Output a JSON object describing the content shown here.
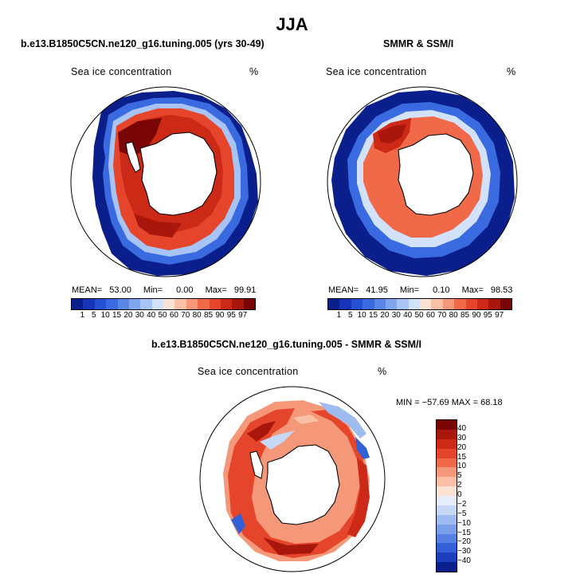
{
  "title": "JJA",
  "panels": [
    {
      "title": "b.e13.B1850C5CN.ne120_g16.tuning.005 (yrs 30-49)",
      "variable": "Sea ice concentration",
      "units": "%",
      "stats": {
        "mean_label": "MEAN=",
        "mean": "53.00",
        "min_label": "Min=",
        "min": "0.00",
        "max_label": "Max=",
        "max": "99.91"
      }
    },
    {
      "title": "SMMR & SSM/I",
      "variable": "Sea ice concentration",
      "units": "%",
      "stats": {
        "mean_label": "MEAN=",
        "mean": "41.95",
        "min_label": "Min=",
        "min": "0.10",
        "max_label": "Max=",
        "max": "98.53"
      }
    },
    {
      "title": "b.e13.B1850C5CN.ne120_g16.tuning.005 - SMMR & SSM/I",
      "variable": "Sea ice concentration",
      "units": "%",
      "stats_text": "MIN = −57.69  MAX =  68.18"
    }
  ],
  "abs_colorbar": {
    "labels": [
      "1",
      "5",
      "10",
      "15",
      "20",
      "30",
      "40",
      "50",
      "60",
      "70",
      "80",
      "85",
      "90",
      "95",
      "97"
    ],
    "colors": [
      "#0a1f8c",
      "#1634b8",
      "#2450d4",
      "#3a6ae0",
      "#5a87e6",
      "#7fa5ee",
      "#a7c4f5",
      "#d3e2fb",
      "#fce2d3",
      "#f9c0a6",
      "#f5987a",
      "#f06a49",
      "#e5462b",
      "#cc2a17",
      "#a8160c",
      "#7a0505"
    ]
  },
  "diff_colorbar": {
    "labels": [
      "40",
      "30",
      "20",
      "15",
      "10",
      "5",
      "2",
      "0",
      "−2",
      "−5",
      "−10",
      "−15",
      "−20",
      "−30",
      "−40"
    ],
    "colors": [
      "#7a0505",
      "#a8160c",
      "#cc2a17",
      "#e5462b",
      "#f06a49",
      "#f5987a",
      "#f9c0a6",
      "#fce2d3",
      "#e6edf8",
      "#c6d8f6",
      "#9fbcf0",
      "#7a9fea",
      "#5680e3",
      "#3360d6",
      "#1c3fbd",
      "#0a1f8c"
    ]
  }
}
